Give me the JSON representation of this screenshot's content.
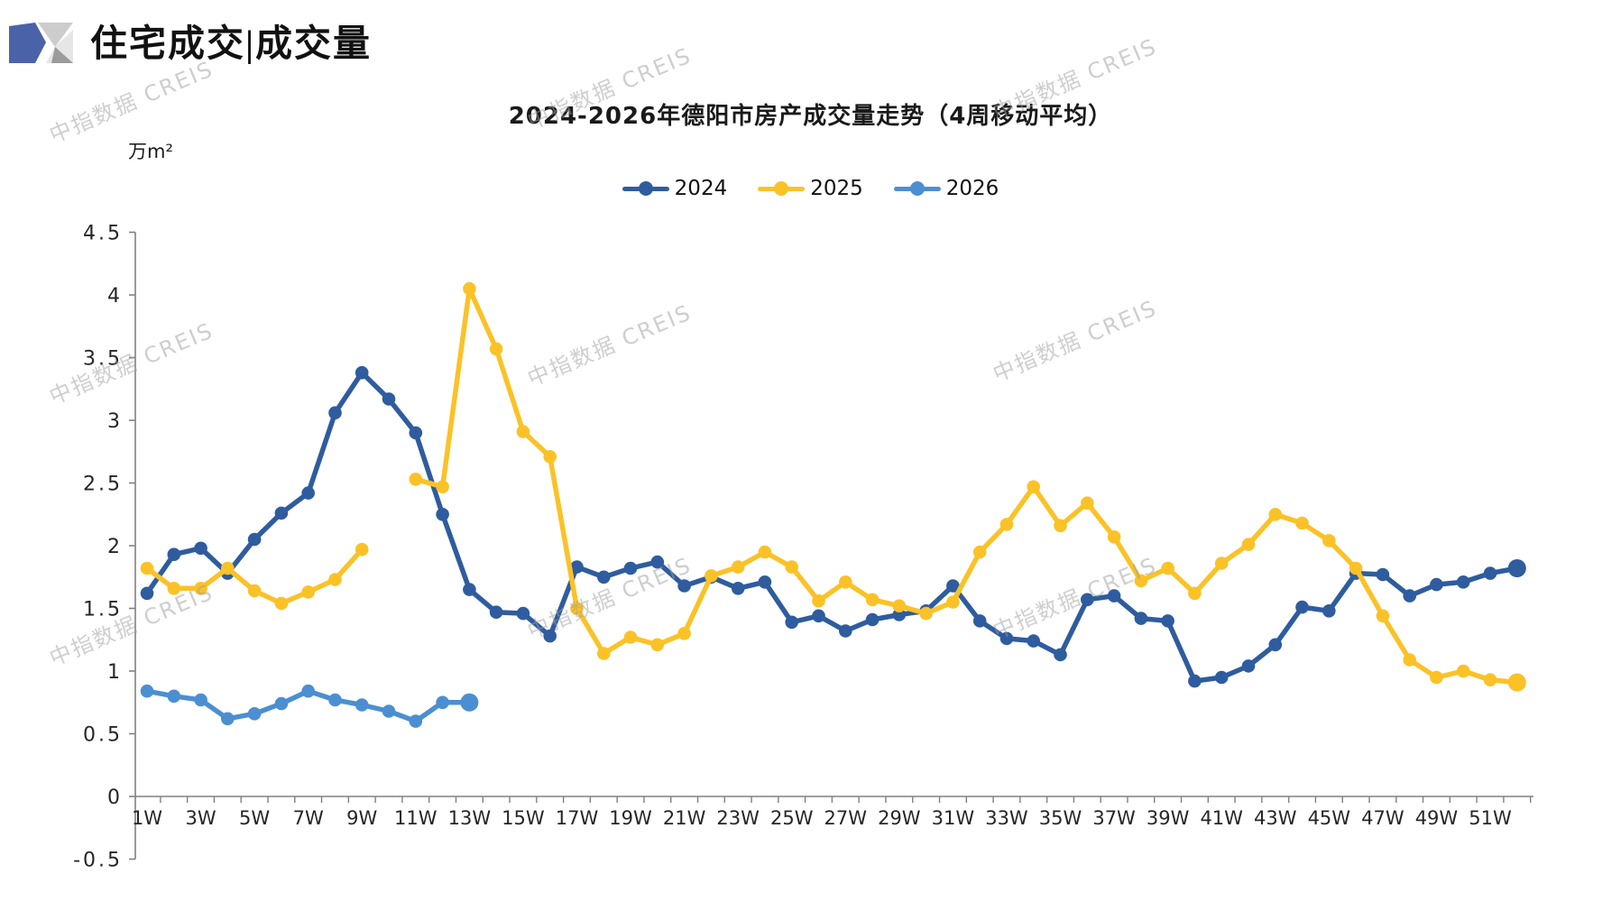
{
  "header": {
    "title": "住宅成交|成交量"
  },
  "watermark": {
    "text": "中指数据 CREIS"
  },
  "legend": {
    "position": "top-center"
  },
  "chart_data": {
    "type": "line",
    "title": "2024-2026年德阳市房产成交量走势（4周移动平均）",
    "unit_label": "万m²",
    "xlabel": "week",
    "ylabel": "万m²",
    "ylim": [
      -0.5,
      4.5
    ],
    "grid": false,
    "weeks": 52,
    "x_tick_labels": [
      "1W",
      "3W",
      "5W",
      "7W",
      "9W",
      "11W",
      "13W",
      "15W",
      "17W",
      "19W",
      "21W",
      "23W",
      "25W",
      "27W",
      "29W",
      "31W",
      "33W",
      "35W",
      "37W",
      "39W",
      "41W",
      "43W",
      "45W",
      "47W",
      "49W",
      "51W"
    ],
    "y_tick_labels": [
      "4.5",
      "4",
      "3.5",
      "3",
      "2.5",
      "2",
      "1.5",
      "1",
      "0.5",
      "0",
      "-0.5"
    ],
    "series": [
      {
        "name": "2024",
        "color": "#2E5C9E",
        "values": [
          1.62,
          1.93,
          1.98,
          1.78,
          2.05,
          2.26,
          2.42,
          3.06,
          3.38,
          3.17,
          2.9,
          2.25,
          1.65,
          1.47,
          1.46,
          1.28,
          1.83,
          1.75,
          1.82,
          1.87,
          1.68,
          1.75,
          1.66,
          1.71,
          1.39,
          1.44,
          1.32,
          1.41,
          1.45,
          1.48,
          1.68,
          1.4,
          1.26,
          1.24,
          1.13,
          1.57,
          1.6,
          1.42,
          1.4,
          0.92,
          0.95,
          1.04,
          1.21,
          1.51,
          1.48,
          1.78,
          1.77,
          1.6,
          1.69,
          1.71,
          1.78,
          1.82
        ]
      },
      {
        "name": "2025",
        "color": "#FBC227",
        "values": [
          1.82,
          1.66,
          1.66,
          1.82,
          1.64,
          1.54,
          1.63,
          1.73,
          1.97,
          null,
          2.53,
          2.47,
          4.05,
          3.57,
          2.91,
          2.71,
          1.5,
          1.14,
          1.27,
          1.21,
          1.3,
          1.76,
          1.83,
          1.95,
          1.83,
          1.56,
          1.71,
          1.57,
          1.52,
          1.46,
          1.55,
          1.95,
          2.17,
          2.47,
          2.16,
          2.34,
          2.07,
          1.72,
          1.82,
          1.62,
          1.86,
          2.01,
          2.25,
          2.18,
          2.04,
          1.82,
          1.44,
          1.09,
          0.95,
          1.0,
          0.93,
          0.91
        ]
      },
      {
        "name": "2026",
        "color": "#4B8FD2",
        "values": [
          0.84,
          0.8,
          0.77,
          0.62,
          0.66,
          0.74,
          0.84,
          0.77,
          0.73,
          0.68,
          0.6,
          0.75,
          0.75
        ]
      }
    ],
    "axis_color": "#808080",
    "label_color": "#262626"
  }
}
